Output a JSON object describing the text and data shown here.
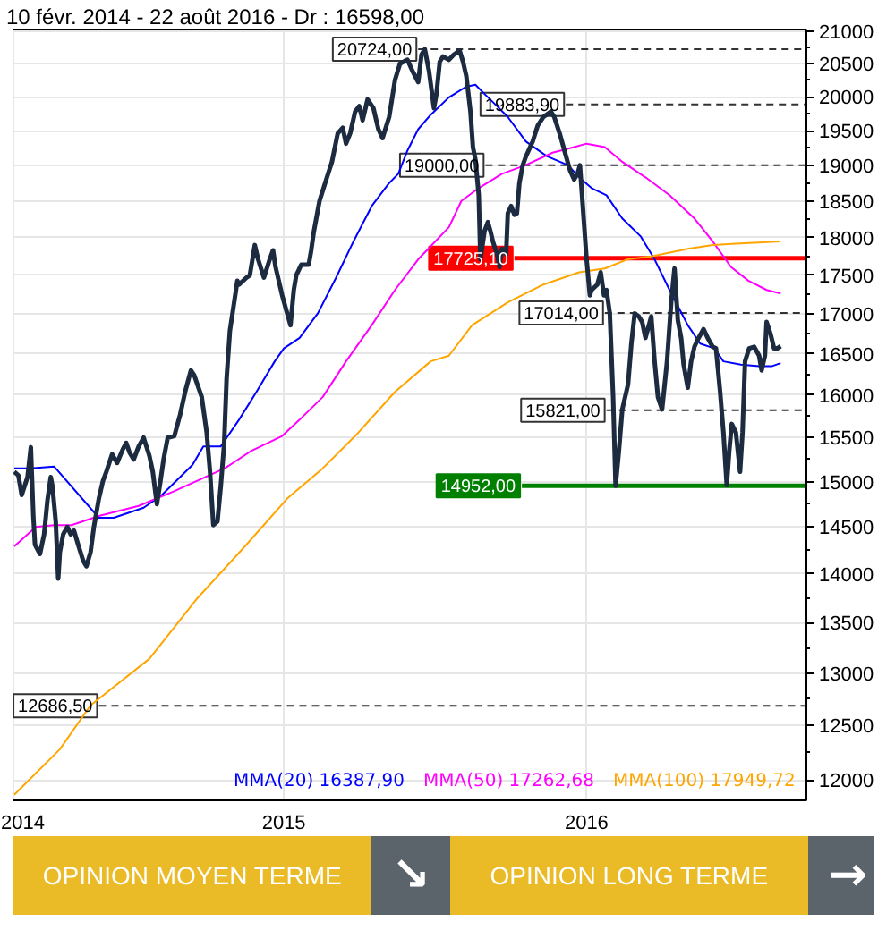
{
  "chart_data": {
    "type": "line",
    "title": "10 févr. 2014 - 22 août 2016 - Dr : 16598,00",
    "xlim": [
      "2014-02-09",
      "2016-09-22"
    ],
    "xticks": [
      {
        "value": "2014-02-10",
        "label": "2014"
      },
      {
        "value": "2015-01-01",
        "label": "2015"
      },
      {
        "value": "2016-01-01",
        "label": "2016"
      }
    ],
    "ylim": [
      11820,
      21030
    ],
    "yticks": [
      12000,
      12500,
      13000,
      13500,
      14000,
      14500,
      15000,
      15500,
      16000,
      16500,
      17000,
      17500,
      18000,
      18500,
      19000,
      19500,
      20000,
      20500,
      21000
    ],
    "log": true,
    "grid": true,
    "legend": "bottom right",
    "annotations": [
      "OPINION MOYEN TERME",
      "↘",
      "OPINION LONG TERME",
      "→"
    ],
    "series": [
      {
        "color": "#333333",
        "line_style": "dashed",
        "x": [
          "2015-06-12",
          "2016-09-22"
        ],
        "values": [
          20724,
          20724
        ],
        "value_labels": [
          "20724,00",
          null
        ]
      },
      {
        "color": "#333333",
        "line_style": "dashed",
        "x": [
          "2015-12-07",
          "2016-09-22"
        ],
        "values": [
          19883.9,
          19883.9
        ],
        "value_labels": [
          "19883,90",
          null
        ]
      },
      {
        "color": "#333333",
        "line_style": "dashed",
        "x": [
          "2015-09-01",
          "2016-09-22"
        ],
        "values": [
          19000,
          19000
        ],
        "value_labels": [
          "19000,00",
          null
        ]
      },
      {
        "color": "#ff0000",
        "line_style": "solid",
        "x": [
          "2015-10-06",
          "2016-09-22"
        ],
        "values": [
          17725.1,
          17725.1
        ],
        "value_labels": [
          "17725,10",
          null
        ]
      },
      {
        "color": "#333333",
        "line_style": "dashed",
        "x": [
          "2016-01-23",
          "2016-09-22"
        ],
        "values": [
          17014,
          17014
        ],
        "value_labels": [
          "17014,00",
          null
        ]
      },
      {
        "color": "#333333",
        "line_style": "dashed",
        "x": [
          "2016-01-25",
          "2016-09-22"
        ],
        "values": [
          15821,
          15821
        ],
        "value_labels": [
          "15821,00",
          null
        ]
      },
      {
        "color": "#008000",
        "line_style": "solid",
        "x": [
          "2015-10-15",
          "2016-09-22"
        ],
        "values": [
          14952,
          14952
        ],
        "value_labels": [
          "14952,00",
          null
        ]
      },
      {
        "color": "#333333",
        "line_style": "dashed",
        "x": [
          "2014-05-23",
          "2016-09-22"
        ],
        "values": [
          12686.5,
          12686.5
        ],
        "value_labels": [
          "12686,50",
          null
        ]
      },
      {
        "name": "MMA(20) 16387,90",
        "color": "#0000ff",
        "x": [
          "2014-02-10",
          "2014-03-02",
          "2014-03-30",
          "2014-05-23",
          "2014-06-10",
          "2014-07-16",
          "2014-08-07",
          "2014-09-13",
          "2014-09-26",
          "2014-10-17",
          "2014-11-08",
          "2014-11-29",
          "2014-12-21",
          "2015-01-01",
          "2015-01-20",
          "2015-02-11",
          "2015-03-05",
          "2015-03-26",
          "2015-04-17",
          "2015-05-08",
          "2015-05-19",
          "2015-05-30",
          "2015-06-12",
          "2015-06-27",
          "2015-07-19",
          "2015-08-09",
          "2015-08-20",
          "2015-08-31",
          "2015-09-15",
          "2015-09-28",
          "2015-10-20",
          "2015-11-14",
          "2015-12-10",
          "2015-12-23",
          "2016-01-07",
          "2016-01-25",
          "2016-02-13",
          "2016-03-06",
          "2016-03-23",
          "2016-04-10",
          "2016-05-02",
          "2016-05-17",
          "2016-06-03",
          "2016-06-14",
          "2016-07-05",
          "2016-07-27",
          "2016-08-11",
          "2016-08-22"
        ],
        "values": [
          15150,
          15150,
          15170,
          14600,
          14600,
          14710,
          14850,
          15190,
          15400,
          15400,
          15710,
          16040,
          16410,
          16570,
          16700,
          17010,
          17470,
          17950,
          18430,
          18750,
          18880,
          19210,
          19520,
          19730,
          19990,
          20150,
          20180,
          20040,
          19860,
          19700,
          19340,
          19130,
          19000,
          18830,
          18680,
          18580,
          18260,
          18020,
          17710,
          17310,
          16860,
          16630,
          16570,
          16410,
          16370,
          16350,
          16350,
          16387.9
        ]
      },
      {
        "name": "MMA(50) 17262,68",
        "color": "#ff00ff",
        "x": [
          "2014-02-10",
          "2014-03-08",
          "2014-03-30",
          "2014-04-20",
          "2014-05-23",
          "2014-07-10",
          "2014-08-21",
          "2014-10-22",
          "2014-11-23",
          "2014-12-30",
          "2015-01-20",
          "2015-02-17",
          "2015-03-17",
          "2015-04-17",
          "2015-05-15",
          "2015-06-12",
          "2015-07-19",
          "2015-08-03",
          "2015-08-24",
          "2015-09-21",
          "2015-10-19",
          "2015-11-21",
          "2015-12-17",
          "2016-01-01",
          "2016-01-23",
          "2016-02-13",
          "2016-03-12",
          "2016-04-10",
          "2016-05-10",
          "2016-06-01",
          "2016-06-23",
          "2016-07-14",
          "2016-08-05",
          "2016-08-22"
        ],
        "values": [
          14290,
          14500,
          14520,
          14520,
          14620,
          14730,
          14890,
          15150,
          15350,
          15520,
          15710,
          15980,
          16410,
          16860,
          17310,
          17710,
          18140,
          18500,
          18680,
          18880,
          19000,
          19180,
          19260,
          19310,
          19260,
          19050,
          18830,
          18580,
          18260,
          17950,
          17610,
          17430,
          17310,
          17262.68
        ]
      },
      {
        "name": "MMA(100) 17949,72",
        "color": "#ffa500",
        "x": [
          "2014-02-10",
          "2014-04-06",
          "2014-05-13",
          "2014-07-23",
          "2014-09-19",
          "2014-11-17",
          "2015-01-05",
          "2015-02-17",
          "2015-04-01",
          "2015-05-15",
          "2015-06-27",
          "2015-07-19",
          "2015-08-16",
          "2015-09-28",
          "2015-11-10",
          "2015-12-23",
          "2016-01-23",
          "2016-02-19",
          "2016-03-19",
          "2016-05-02",
          "2016-06-01",
          "2016-06-29",
          "2016-08-22"
        ],
        "values": [
          11870,
          12280,
          12690,
          13140,
          13750,
          14310,
          14810,
          15150,
          15560,
          16040,
          16410,
          16480,
          16860,
          17150,
          17380,
          17540,
          17590,
          17710,
          17750,
          17850,
          17900,
          17920,
          17949.72
        ]
      },
      {
        "color": "#1c2b40",
        "x": [
          "2014-02-10",
          "2014-02-15",
          "2014-02-19",
          "2014-02-26",
          "2014-03-02",
          "2014-03-05",
          "2014-03-07",
          "2014-03-13",
          "2014-03-18",
          "2014-03-22",
          "2014-03-26",
          "2014-03-28",
          "2014-04-01",
          "2014-04-04",
          "2014-04-06",
          "2014-04-10",
          "2014-04-15",
          "2014-04-19",
          "2014-04-23",
          "2014-04-28",
          "2014-05-04",
          "2014-05-08",
          "2014-05-13",
          "2014-05-17",
          "2014-05-23",
          "2014-05-28",
          "2014-06-01",
          "2014-06-08",
          "2014-06-14",
          "2014-06-21",
          "2014-06-25",
          "2014-06-29",
          "2014-07-04",
          "2014-07-10",
          "2014-07-16",
          "2014-07-23",
          "2014-07-27",
          "2014-08-01",
          "2014-08-05",
          "2014-08-09",
          "2014-08-14",
          "2014-08-22",
          "2014-08-29",
          "2014-09-04",
          "2014-09-11",
          "2014-09-15",
          "2014-09-24",
          "2014-09-30",
          "2014-10-04",
          "2014-10-08",
          "2014-10-13",
          "2014-10-17",
          "2014-10-21",
          "2014-10-24",
          "2014-10-28",
          "2014-11-06",
          "2014-11-08",
          "2014-11-17",
          "2014-11-21",
          "2014-11-27",
          "2014-12-01",
          "2014-12-08",
          "2014-12-15",
          "2014-12-19",
          "2014-12-22",
          "2014-12-30",
          "2015-01-05",
          "2015-01-09",
          "2015-01-13",
          "2015-01-16",
          "2015-01-22",
          "2015-01-31",
          "2015-02-03",
          "2015-02-06",
          "2015-02-13",
          "2015-02-22",
          "2015-02-28",
          "2015-03-07",
          "2015-03-13",
          "2015-03-17",
          "2015-03-22",
          "2015-03-28",
          "2015-04-02",
          "2015-04-06",
          "2015-04-12",
          "2015-04-19",
          "2015-04-25",
          "2015-04-30",
          "2015-05-08",
          "2015-05-15",
          "2015-05-21",
          "2015-05-30",
          "2015-06-05",
          "2015-06-12",
          "2015-06-16",
          "2015-06-20",
          "2015-06-25",
          "2015-07-01",
          "2015-07-04",
          "2015-07-08",
          "2015-07-12",
          "2015-07-19",
          "2015-07-25",
          "2015-08-01",
          "2015-08-05",
          "2015-08-09",
          "2015-08-14",
          "2015-08-17",
          "2015-08-20",
          "2015-08-24",
          "2015-08-26",
          "2015-08-31",
          "2015-09-04",
          "2015-09-07",
          "2015-09-10",
          "2015-09-15",
          "2015-09-18",
          "2015-09-21",
          "2015-09-26",
          "2015-09-28",
          "2015-10-02",
          "2015-10-06",
          "2015-10-09",
          "2015-10-12",
          "2015-10-16",
          "2015-10-20",
          "2015-10-28",
          "2015-11-03",
          "2015-11-10",
          "2015-11-19",
          "2015-11-23",
          "2015-11-30",
          "2015-12-06",
          "2015-12-12",
          "2015-12-17",
          "2015-12-21",
          "2015-12-24",
          "2015-12-27",
          "2016-01-01",
          "2016-01-05",
          "2016-01-07",
          "2016-01-14",
          "2016-01-18",
          "2016-01-22",
          "2016-01-25",
          "2016-01-29",
          "2016-02-02",
          "2016-02-05",
          "2016-02-09",
          "2016-02-13",
          "2016-02-20",
          "2016-02-24",
          "2016-02-28",
          "2016-03-04",
          "2016-03-08",
          "2016-03-12",
          "2016-03-19",
          "2016-03-23",
          "2016-03-27",
          "2016-04-01",
          "2016-04-07",
          "2016-04-12",
          "2016-04-16",
          "2016-04-20",
          "2016-04-24",
          "2016-04-27",
          "2016-05-02",
          "2016-05-06",
          "2016-05-10",
          "2016-05-15",
          "2016-05-21",
          "2016-05-26",
          "2016-06-01",
          "2016-06-05",
          "2016-06-10",
          "2016-06-14",
          "2016-06-18",
          "2016-06-21",
          "2016-06-24",
          "2016-06-29",
          "2016-07-04",
          "2016-07-07",
          "2016-07-10",
          "2016-07-15",
          "2016-07-21",
          "2016-07-27",
          "2016-07-30",
          "2016-08-03",
          "2016-08-05",
          "2016-08-10",
          "2016-08-14",
          "2016-08-18",
          "2016-08-22"
        ],
        "values": [
          15110,
          15070,
          14850,
          15050,
          15390,
          14620,
          14310,
          14210,
          14420,
          14790,
          15050,
          14950,
          14560,
          13950,
          14230,
          14420,
          14500,
          14420,
          14460,
          14310,
          14140,
          14080,
          14230,
          14500,
          14810,
          15010,
          15110,
          15310,
          15210,
          15370,
          15440,
          15330,
          15250,
          15400,
          15500,
          15290,
          15110,
          14750,
          14990,
          15250,
          15500,
          15520,
          15770,
          16040,
          16300,
          16240,
          15980,
          15560,
          15110,
          14520,
          14560,
          14950,
          15420,
          16200,
          16790,
          17430,
          17380,
          17470,
          17500,
          17900,
          17710,
          17470,
          17710,
          17830,
          17610,
          17240,
          17010,
          16860,
          17310,
          17500,
          17640,
          17640,
          17830,
          18070,
          18500,
          18830,
          19050,
          19460,
          19540,
          19310,
          19460,
          19780,
          19860,
          19650,
          19960,
          19830,
          19520,
          19390,
          19700,
          20250,
          20500,
          20560,
          20390,
          20220,
          20640,
          20724,
          20390,
          19830,
          20040,
          20530,
          20610,
          20560,
          20640,
          20700,
          20530,
          20310,
          19780,
          19260,
          19080,
          18580,
          17710,
          18090,
          18210,
          18090,
          17950,
          17780,
          17610,
          17850,
          17780,
          18330,
          18430,
          18310,
          18330,
          18750,
          19000,
          19130,
          19340,
          19570,
          19700,
          19780,
          19700,
          19440,
          19180,
          18930,
          18800,
          18880,
          19000,
          18500,
          17710,
          17240,
          17310,
          17380,
          17540,
          17240,
          17310,
          17010,
          15980,
          14952,
          15350,
          15830,
          16130,
          16630,
          17010,
          16970,
          16900,
          16700,
          16970,
          16410,
          15980,
          15830,
          16410,
          17150,
          17590,
          16920,
          16700,
          16370,
          16090,
          16410,
          16590,
          16700,
          16810,
          16700,
          16590,
          16570,
          16040,
          15560,
          14960,
          15350,
          15660,
          15560,
          15110,
          15560,
          16410,
          16570,
          16590,
          16480,
          16300,
          16480,
          16900,
          16740,
          16570,
          16570,
          16598
        ]
      }
    ]
  }
}
